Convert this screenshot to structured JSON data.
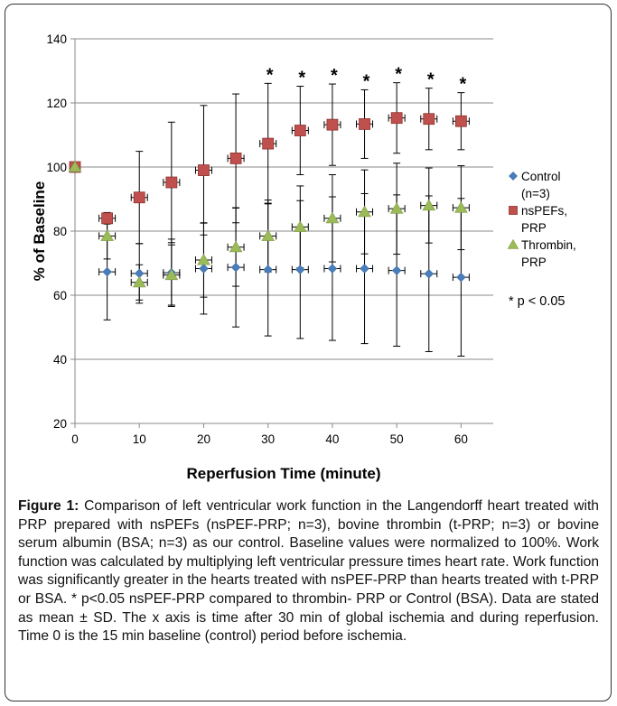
{
  "chart_data": {
    "type": "scatter",
    "xlabel": "Reperfusion Time (minute)",
    "ylabel": "% of Baseline",
    "xlim": [
      0,
      65
    ],
    "ylim": [
      20,
      140
    ],
    "xticks": [
      0,
      10,
      20,
      30,
      40,
      50,
      60
    ],
    "yticks": [
      20,
      40,
      60,
      80,
      100,
      120,
      140
    ],
    "grid": "horizontal",
    "legend_position": "right",
    "series": [
      {
        "name": "Control (n=3)",
        "legend_lines": [
          "Control",
          "(n=3)"
        ],
        "color": "#4a7ebb",
        "marker": "diamond",
        "x": [
          5,
          10,
          15,
          20,
          25,
          30,
          35,
          40,
          45,
          50,
          55,
          60
        ],
        "y": [
          67.3,
          66.8,
          67.0,
          68.3,
          68.7,
          68.0,
          68.0,
          68.3,
          68.3,
          67.7,
          66.7,
          65.6
        ],
        "err": [
          15,
          9.3,
          10.5,
          14.2,
          18.6,
          20.7,
          21.5,
          22.4,
          23.4,
          23.6,
          24.3,
          24.6
        ]
      },
      {
        "name": "nsPEFs, PRP",
        "legend_lines": [
          "nsPEFs,",
          "PRP"
        ],
        "color": "#c0504d",
        "marker": "square",
        "x": [
          0,
          5,
          10,
          15,
          20,
          25,
          30,
          35,
          40,
          45,
          50,
          55,
          60
        ],
        "y": [
          100,
          84,
          90.5,
          95.2,
          99.0,
          102.7,
          107.3,
          111.4,
          113.2,
          113.4,
          115.3,
          115.0,
          114.3
        ],
        "err": [
          0,
          1.8,
          14.4,
          18.8,
          20.2,
          20.1,
          18.8,
          13.8,
          12.7,
          10.7,
          11.0,
          9.6,
          8.9
        ]
      },
      {
        "name": "Thrombin, PRP",
        "legend_lines": [
          "Thrombin,",
          "PRP"
        ],
        "color": "#9bbb59",
        "marker": "triangle",
        "x": [
          0,
          5,
          10,
          15,
          20,
          25,
          30,
          35,
          40,
          45,
          50,
          55,
          60
        ],
        "y": [
          100,
          78.5,
          64.0,
          66.3,
          71.0,
          75.0,
          78.5,
          81.3,
          84.0,
          86.0,
          87.0,
          88.0,
          87.3
        ],
        "err": [
          0,
          7.2,
          5.5,
          9.4,
          11.6,
          12.2,
          11.2,
          12.8,
          13.6,
          13.1,
          14.2,
          11.7,
          13.1
        ]
      }
    ],
    "significance_marker": "*",
    "significance_x": [
      30,
      35,
      40,
      45,
      50,
      55,
      60
    ],
    "significance_note": "* p < 0.05"
  },
  "caption": {
    "label": "Figure 1:",
    "text": " Comparison of left ventricular work function in the Langendorff heart treated with PRP prepared with nsPEFs  (nsPEF-PRP; n=3), bovine thrombin (t-PRP; n=3) or bovine serum albumin (BSA; n=3) as our control. Baseline values were normalized to 100%. Work function was calculated by multiplying left ventricular pressure times heart rate.   Work function was significantly greater in the hearts treated with nsPEF-PRP than hearts treated with t-PRP or BSA.   * p<0.05 nsPEF-PRP compared to thrombin- PRP or Control (BSA). Data are stated as mean ± SD. The x axis is time after 30 min of global ischemia and during reperfusion. Time 0 is the 15 min baseline (control) period before ischemia."
  }
}
